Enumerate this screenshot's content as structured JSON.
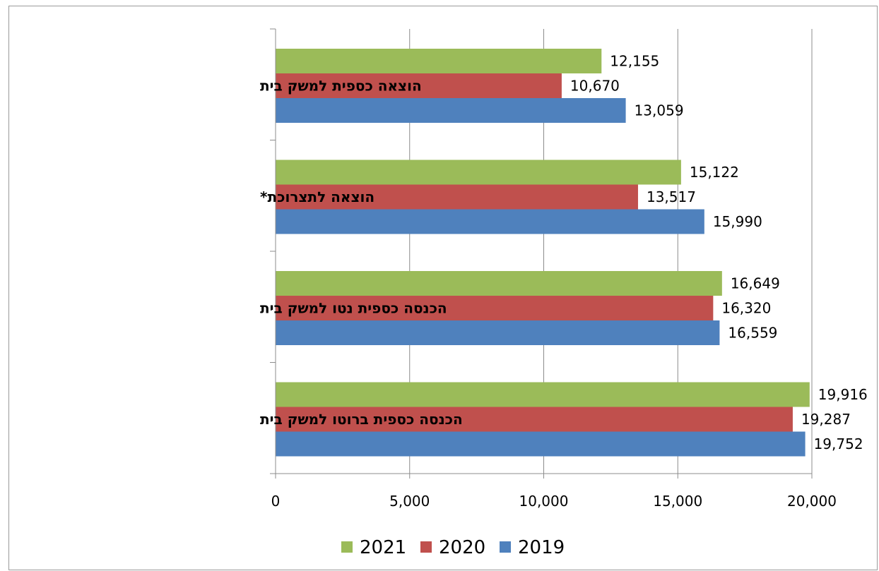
{
  "chart_data": {
    "type": "bar",
    "orientation": "horizontal",
    "categories": [
      "הוצאה כספית  למשק בית",
      "הוצאה לתצרוכת*",
      "הכנסה כספית  נטו למשק בית",
      "הכנסה כספית  ברוטו למשק בית"
    ],
    "series": [
      {
        "name": "2021",
        "color": "#9bbb59",
        "values": [
          12155,
          15122,
          16649,
          19916
        ],
        "value_labels": [
          "12,155",
          "15,122",
          "16,649",
          "19,916"
        ]
      },
      {
        "name": "2020",
        "color": "#c0504d",
        "values": [
          10670,
          13517,
          16320,
          19287
        ],
        "value_labels": [
          "10,670",
          "13,517",
          "16,320",
          "19,287"
        ]
      },
      {
        "name": "2019",
        "color": "#4f81bd",
        "values": [
          13059,
          15990,
          16559,
          19752
        ],
        "value_labels": [
          "13,059",
          "15,990",
          "16,559",
          "19,752"
        ]
      }
    ],
    "xlim": [
      0,
      20000
    ],
    "xticks": [
      0,
      5000,
      10000,
      15000,
      20000
    ],
    "xtick_labels": [
      "0",
      "5,000",
      "10,000",
      "15,000",
      "20,000"
    ],
    "grid": "vertical major gridlines",
    "legend_position": "bottom",
    "legend_order": [
      "2021",
      "2020",
      "2019"
    ],
    "title": "",
    "xlabel": "",
    "ylabel": ""
  }
}
